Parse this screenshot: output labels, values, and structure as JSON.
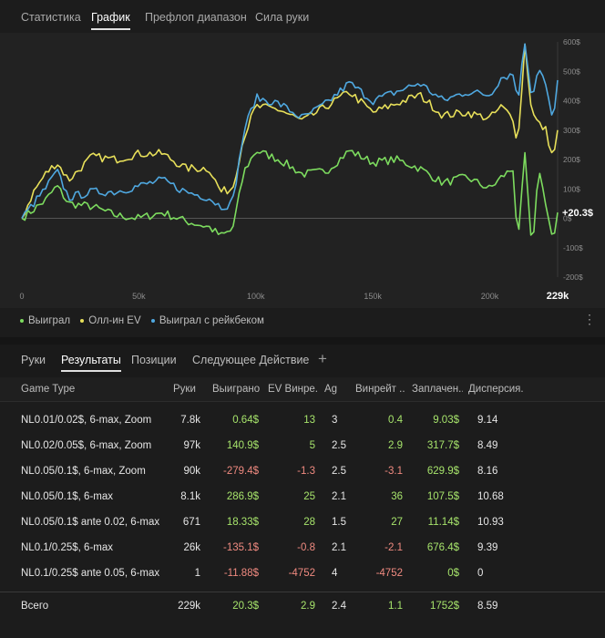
{
  "top_tabs": [
    "Статистика",
    "График",
    "Префлоп диапазон",
    "Сила руки"
  ],
  "chart_data": {
    "type": "line",
    "x_ticks": [
      "0",
      "50k",
      "100k",
      "150k",
      "200k"
    ],
    "x_end_label": "229k",
    "y_ticks": [
      "600$",
      "500$",
      "400$",
      "300$",
      "200$",
      "100$",
      "0$",
      "-100$",
      "-200$"
    ],
    "y_range": [
      -200,
      600
    ],
    "x_range": [
      0,
      229000
    ],
    "final_label": "+20.3$",
    "series": [
      {
        "name": "Выиграл",
        "color": "#7ddc5f",
        "x": [
          0,
          5000,
          10000,
          15000,
          20000,
          30000,
          40000,
          50000,
          60000,
          70000,
          80000,
          85000,
          90000,
          95000,
          100000,
          110000,
          120000,
          130000,
          140000,
          150000,
          160000,
          170000,
          180000,
          190000,
          200000,
          205000,
          210000,
          212000,
          215000,
          218000,
          221000,
          224000,
          227000,
          229000
        ],
        "y": [
          0,
          30,
          60,
          110,
          50,
          40,
          10,
          0,
          20,
          -10,
          -30,
          -60,
          -40,
          160,
          230,
          200,
          150,
          160,
          230,
          190,
          200,
          170,
          120,
          140,
          100,
          140,
          170,
          -100,
          220,
          -120,
          180,
          40,
          -90,
          20
        ]
      },
      {
        "name": "Олл-ин EV",
        "color": "#e8e05a",
        "x": [
          0,
          5000,
          10000,
          15000,
          20000,
          30000,
          40000,
          50000,
          60000,
          70000,
          80000,
          85000,
          90000,
          95000,
          100000,
          110000,
          120000,
          130000,
          140000,
          150000,
          160000,
          170000,
          180000,
          190000,
          200000,
          205000,
          210000,
          212000,
          215000,
          218000,
          221000,
          224000,
          227000,
          229000
        ],
        "y": [
          0,
          90,
          150,
          190,
          130,
          210,
          200,
          220,
          220,
          170,
          170,
          90,
          100,
          280,
          380,
          370,
          330,
          380,
          430,
          360,
          390,
          420,
          350,
          360,
          340,
          380,
          340,
          250,
          590,
          360,
          320,
          300,
          200,
          300
        ]
      },
      {
        "name": "Выиграл с рейкбеком",
        "color": "#4fa8e0",
        "x": [
          0,
          5000,
          10000,
          15000,
          20000,
          30000,
          40000,
          50000,
          60000,
          70000,
          80000,
          85000,
          90000,
          95000,
          100000,
          110000,
          120000,
          130000,
          140000,
          150000,
          160000,
          170000,
          180000,
          190000,
          200000,
          205000,
          210000,
          212000,
          215000,
          218000,
          221000,
          224000,
          227000,
          229000
        ],
        "y": [
          0,
          50,
          100,
          160,
          70,
          90,
          90,
          110,
          130,
          90,
          70,
          40,
          50,
          300,
          410,
          390,
          340,
          390,
          460,
          400,
          430,
          460,
          400,
          430,
          420,
          480,
          490,
          400,
          600,
          410,
          520,
          450,
          320,
          470
        ]
      }
    ]
  },
  "legend": [
    "Выиграл",
    "Олл-ин EV",
    "Выиграл с рейкбеком"
  ],
  "bottom_tabs": [
    "Руки",
    "Результаты",
    "Позиции",
    "Следующее Действие"
  ],
  "plus_icon": "+",
  "more_icon": "⋮",
  "table": {
    "headers": [
      "Game Type",
      "Руки",
      "Выиграно",
      "EV Винрейт",
      "Ag",
      "Винрейт",
      "Заплачено",
      "Дисперсия"
    ],
    "header_display": [
      "Game Type",
      "Руки",
      "Выиграно",
      "EV Винре...",
      "Ag",
      "Винрейт ...",
      "Заплачен...",
      "Дисперсия..."
    ],
    "rows": [
      [
        "NL0.01/0.02$, 6-max, Zoom",
        "7.8k",
        "0.64$",
        "13",
        "3",
        "0.4",
        "9.03$",
        "9.14"
      ],
      [
        "NL0.02/0.05$, 6-max, Zoom",
        "97k",
        "140.9$",
        "5",
        "2.5",
        "2.9",
        "317.7$",
        "8.49"
      ],
      [
        "NL0.05/0.1$, 6-max, Zoom",
        "90k",
        "-279.4$",
        "-1.3",
        "2.5",
        "-3.1",
        "629.9$",
        "8.16"
      ],
      [
        "NL0.05/0.1$, 6-max",
        "8.1k",
        "286.9$",
        "25",
        "2.1",
        "36",
        "107.5$",
        "10.68"
      ],
      [
        "NL0.05/0.1$ ante 0.02, 6-max",
        "671",
        "18.33$",
        "28",
        "1.5",
        "27",
        "11.14$",
        "10.93"
      ],
      [
        "NL0.1/0.25$, 6-max",
        "26k",
        "-135.1$",
        "-0.8",
        "2.1",
        "-2.1",
        "676.4$",
        "9.39"
      ],
      [
        "NL0.1/0.25$ ante 0.05, 6-max",
        "1",
        "-11.88$",
        "-4752",
        "4",
        "-4752",
        "0$",
        "0"
      ]
    ],
    "total": [
      "Всего",
      "229k",
      "20.3$",
      "2.9",
      "2.4",
      "1.1",
      "1752$",
      "8.59"
    ]
  },
  "colors": {
    "positive": "#a6e36b",
    "negative": "#f08a80",
    "background": "#1c1c1c"
  }
}
